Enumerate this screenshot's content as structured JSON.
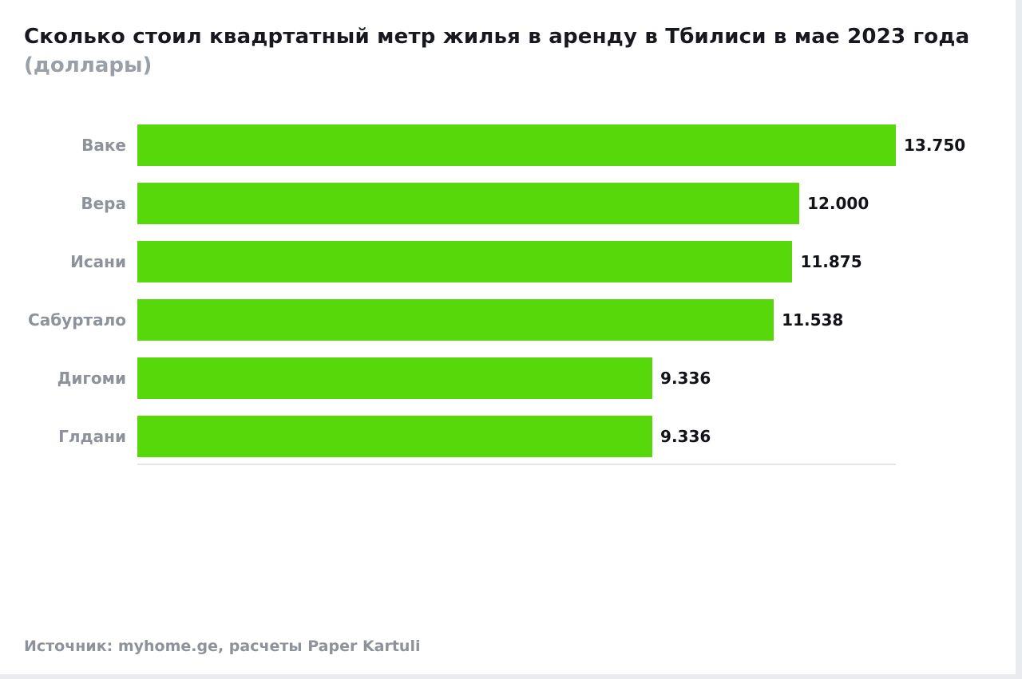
{
  "page": {
    "title": "Сколько стоил квадртатный метр жилья в аренду в Тбилиси в мае 2023 года",
    "subtitle": "(доллары)",
    "source": "Источник: myhome.ge, расчеты Paper Kartuli"
  },
  "colors": {
    "bar": "#57d80a",
    "title_text": "#17191f",
    "subtitle_text": "#9aa0a8",
    "category_text": "#8d929b",
    "value_text": "#111318",
    "baseline": "#e6e6e6"
  },
  "chart_data": {
    "type": "bar",
    "orientation": "horizontal",
    "title": "Сколько стоил квадртатный метр жилья в аренду в Тбилиси в мае 2023 года (доллары)",
    "categories": [
      "Ваке",
      "Вера",
      "Исани",
      "Сабуртало",
      "Дигоми",
      "Глдани"
    ],
    "values": [
      13.75,
      12.0,
      11.875,
      11.538,
      9.336,
      9.336
    ],
    "value_labels": [
      "13.750",
      "12.000",
      "11.875",
      "11.538",
      "9.336",
      "9.336"
    ],
    "xlabel": "",
    "ylabel": "",
    "xlim": [
      0,
      13.75
    ],
    "grid": false,
    "legend": false,
    "bar_color": "#57d80a",
    "source": "Источник: myhome.ge, расчеты Paper Kartuli"
  }
}
